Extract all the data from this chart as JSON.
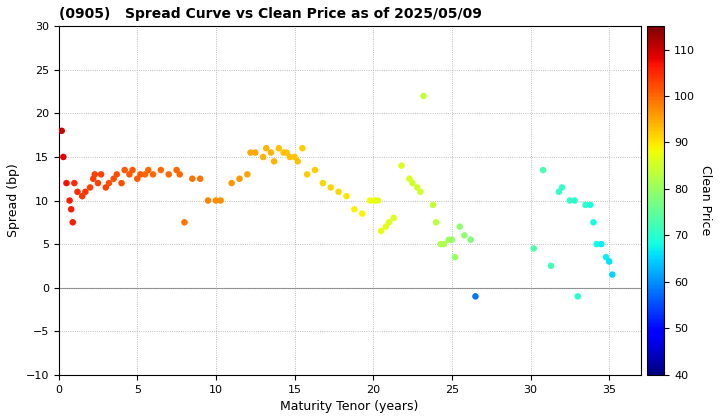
{
  "title": "(0905)   Spread Curve vs Clean Price as of 2025/05/09",
  "xlabel": "Maturity Tenor (years)",
  "ylabel": "Spread (bp)",
  "colorbar_label": "Clean Price",
  "xlim": [
    0,
    37
  ],
  "ylim": [
    -10,
    30
  ],
  "xticks": [
    0,
    5,
    10,
    15,
    20,
    25,
    30,
    35
  ],
  "yticks": [
    -10,
    -5,
    0,
    5,
    10,
    15,
    20,
    25,
    30
  ],
  "cmap": "jet",
  "vmin": 40,
  "vmax": 115,
  "colorbar_ticks": [
    40,
    50,
    60,
    70,
    80,
    90,
    100,
    110
  ],
  "bg_color": "#f5f5f5",
  "points": [
    [
      0.2,
      18.0,
      110
    ],
    [
      0.3,
      15.0,
      108
    ],
    [
      0.5,
      12.0,
      107
    ],
    [
      0.7,
      10.0,
      106
    ],
    [
      0.8,
      9.0,
      106
    ],
    [
      0.9,
      7.5,
      106
    ],
    [
      1.0,
      12.0,
      105
    ],
    [
      1.2,
      11.0,
      105
    ],
    [
      1.5,
      10.5,
      104
    ],
    [
      1.7,
      11.0,
      104
    ],
    [
      2.0,
      11.5,
      103
    ],
    [
      2.2,
      12.5,
      103
    ],
    [
      2.3,
      13.0,
      103
    ],
    [
      2.5,
      12.0,
      103
    ],
    [
      2.7,
      13.0,
      103
    ],
    [
      3.0,
      11.5,
      103
    ],
    [
      3.2,
      12.0,
      102
    ],
    [
      3.5,
      12.5,
      102
    ],
    [
      3.7,
      13.0,
      102
    ],
    [
      4.0,
      12.0,
      102
    ],
    [
      4.2,
      13.5,
      101
    ],
    [
      4.5,
      13.0,
      101
    ],
    [
      4.7,
      13.5,
      101
    ],
    [
      5.0,
      12.5,
      101
    ],
    [
      5.2,
      13.0,
      101
    ],
    [
      5.5,
      13.0,
      100
    ],
    [
      5.7,
      13.5,
      100
    ],
    [
      6.0,
      13.0,
      100
    ],
    [
      6.5,
      13.5,
      100
    ],
    [
      7.0,
      13.0,
      100
    ],
    [
      7.5,
      13.5,
      100
    ],
    [
      7.7,
      13.0,
      100
    ],
    [
      8.0,
      7.5,
      99
    ],
    [
      8.5,
      12.5,
      99
    ],
    [
      9.0,
      12.5,
      99
    ],
    [
      9.5,
      10.0,
      98
    ],
    [
      10.0,
      10.0,
      97
    ],
    [
      10.3,
      10.0,
      97
    ],
    [
      11.0,
      12.0,
      96
    ],
    [
      11.5,
      12.5,
      96
    ],
    [
      12.0,
      13.0,
      95
    ],
    [
      12.2,
      15.5,
      95
    ],
    [
      12.5,
      15.5,
      95
    ],
    [
      13.0,
      15.0,
      94
    ],
    [
      13.2,
      16.0,
      94
    ],
    [
      13.5,
      15.5,
      94
    ],
    [
      13.7,
      14.5,
      94
    ],
    [
      14.0,
      16.0,
      93
    ],
    [
      14.3,
      15.5,
      93
    ],
    [
      14.5,
      15.5,
      93
    ],
    [
      14.7,
      15.0,
      93
    ],
    [
      15.0,
      15.0,
      93
    ],
    [
      15.2,
      14.5,
      93
    ],
    [
      15.5,
      16.0,
      92
    ],
    [
      15.8,
      13.0,
      92
    ],
    [
      16.3,
      13.5,
      92
    ],
    [
      16.8,
      12.0,
      91
    ],
    [
      17.3,
      11.5,
      91
    ],
    [
      17.8,
      11.0,
      91
    ],
    [
      18.3,
      10.5,
      90
    ],
    [
      18.8,
      9.0,
      89
    ],
    [
      19.3,
      8.5,
      89
    ],
    [
      19.8,
      10.0,
      88
    ],
    [
      20.1,
      10.0,
      88
    ],
    [
      20.3,
      10.0,
      87
    ],
    [
      20.5,
      6.5,
      87
    ],
    [
      20.8,
      7.0,
      87
    ],
    [
      21.0,
      7.5,
      86
    ],
    [
      21.3,
      8.0,
      86
    ],
    [
      21.8,
      14.0,
      86
    ],
    [
      22.3,
      12.5,
      86
    ],
    [
      22.5,
      12.0,
      85
    ],
    [
      22.8,
      11.5,
      85
    ],
    [
      23.0,
      11.0,
      85
    ],
    [
      23.2,
      22.0,
      84
    ],
    [
      23.8,
      9.5,
      84
    ],
    [
      24.0,
      7.5,
      83
    ],
    [
      24.3,
      5.0,
      82
    ],
    [
      24.5,
      5.0,
      82
    ],
    [
      24.8,
      5.5,
      81
    ],
    [
      25.0,
      5.5,
      80
    ],
    [
      25.2,
      3.5,
      80
    ],
    [
      25.5,
      7.0,
      79
    ],
    [
      25.8,
      6.0,
      79
    ],
    [
      26.2,
      5.5,
      78
    ],
    [
      30.2,
      4.5,
      73
    ],
    [
      30.8,
      13.5,
      73
    ],
    [
      31.3,
      2.5,
      72
    ],
    [
      31.8,
      11.0,
      71
    ],
    [
      32.0,
      11.5,
      71
    ],
    [
      32.5,
      10.0,
      71
    ],
    [
      32.8,
      10.0,
      70
    ],
    [
      33.0,
      -1.0,
      70
    ],
    [
      33.5,
      9.5,
      70
    ],
    [
      33.8,
      9.5,
      69
    ],
    [
      34.0,
      7.5,
      68
    ],
    [
      34.2,
      5.0,
      68
    ],
    [
      34.5,
      5.0,
      67
    ],
    [
      34.8,
      3.5,
      67
    ],
    [
      35.0,
      3.0,
      66
    ],
    [
      35.2,
      1.5,
      65
    ],
    [
      26.5,
      -1.0,
      58
    ]
  ]
}
